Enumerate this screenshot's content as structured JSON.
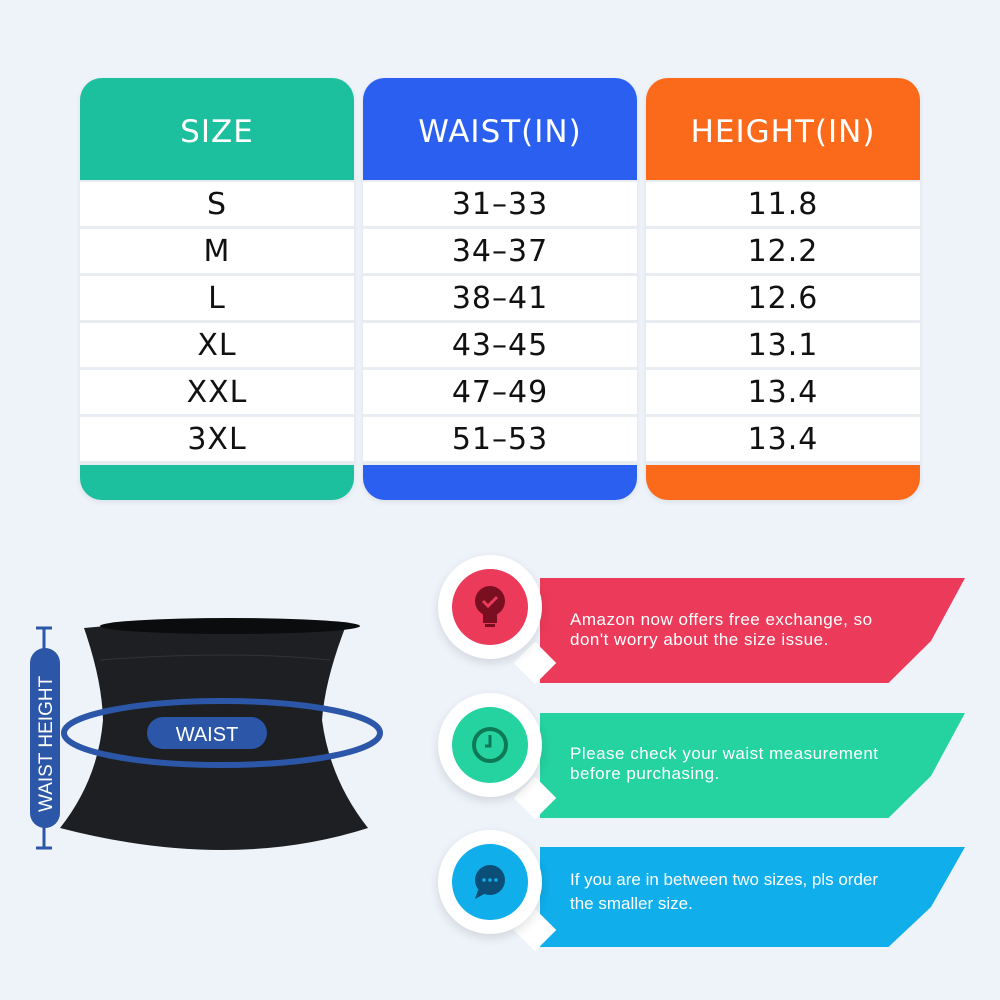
{
  "table": {
    "columns": [
      {
        "header": "SIZE",
        "color": "#1cbf9e",
        "values": [
          "S",
          "M",
          "L",
          "XL",
          "XXL",
          "3XL"
        ]
      },
      {
        "header": "WAIST(IN)",
        "color": "#2a5ff0",
        "values": [
          "31–33",
          "34–37",
          "38–41",
          "43–45",
          "47–49",
          "51–53"
        ]
      },
      {
        "header": "HEIGHT(IN)",
        "color": "#fb6a1b",
        "values": [
          "11.8",
          "12.2",
          "12.6",
          "13.1",
          "13.4",
          "13.4"
        ]
      }
    ]
  },
  "diagram": {
    "waist_label": "WAIST",
    "height_label": "WAIST HEIGHT",
    "accent": "#2c56a8"
  },
  "tips": [
    {
      "icon": "lightbulb-check-icon",
      "color": "#ec3b5a",
      "text_lines": [
        "Amazon now offers free exchange, so",
        "don't worry about the size issue."
      ]
    },
    {
      "icon": "clock-icon",
      "color": "#25d3a0",
      "text_lines": [
        "Please check your waist measurement",
        "before purchasing."
      ]
    },
    {
      "icon": "chat-bubble-icon",
      "color": "#10aeea",
      "text_lines": [
        "If you are in between two sizes, pls order",
        "the smaller size."
      ]
    }
  ]
}
